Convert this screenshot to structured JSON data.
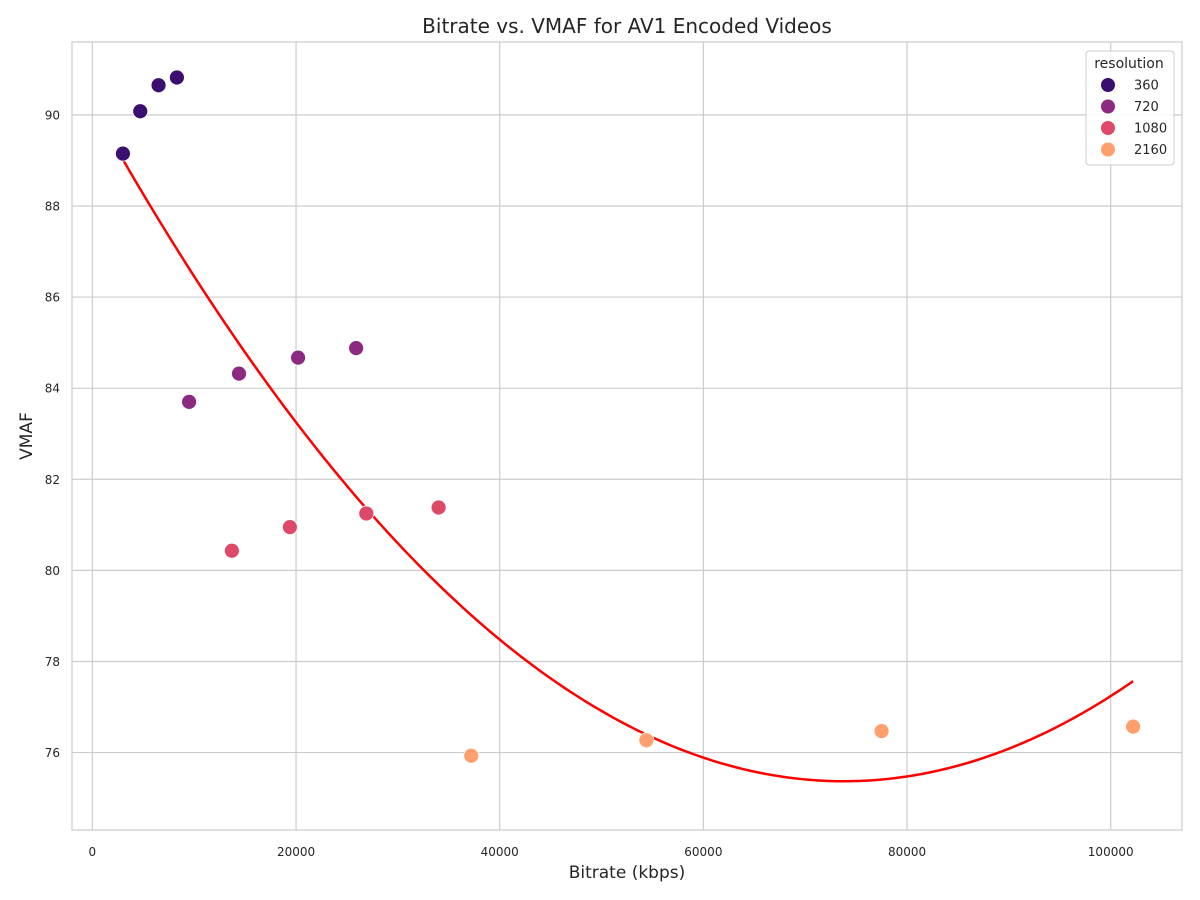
{
  "chart_data": {
    "type": "scatter",
    "title": "Bitrate vs. VMAF for AV1 Encoded Videos",
    "xlabel": "Bitrate (kbps)",
    "ylabel": "VMAF",
    "xlim": [
      -2000,
      107000
    ],
    "ylim": [
      74.3,
      91.6
    ],
    "xticks": [
      0,
      20000,
      40000,
      60000,
      80000,
      100000
    ],
    "yticks": [
      76,
      78,
      80,
      82,
      84,
      86,
      88,
      90
    ],
    "grid": true,
    "legend": {
      "title": "resolution",
      "placement": "top-right"
    },
    "series": [
      {
        "name": "360",
        "color": "#3b0f70",
        "points": [
          [
            3000,
            89.15
          ],
          [
            4700,
            90.08
          ],
          [
            6500,
            90.65
          ],
          [
            8300,
            90.82
          ]
        ]
      },
      {
        "name": "720",
        "color": "#8c2981",
        "points": [
          [
            9500,
            83.7
          ],
          [
            14400,
            84.32
          ],
          [
            20200,
            84.67
          ],
          [
            25900,
            84.88
          ]
        ]
      },
      {
        "name": "1080",
        "color": "#de4968",
        "points": [
          [
            13700,
            80.43
          ],
          [
            19400,
            80.95
          ],
          [
            26900,
            81.25
          ],
          [
            34000,
            81.38
          ]
        ]
      },
      {
        "name": "2160",
        "color": "#fe9f6d",
        "points": [
          [
            37200,
            75.93
          ],
          [
            54400,
            76.27
          ],
          [
            77500,
            76.47
          ],
          [
            102200,
            76.57
          ]
        ]
      }
    ],
    "trendline": {
      "type": "quadratic",
      "color": "#ff0000",
      "x_range": [
        3000,
        102200
      ],
      "coefficients": [
        2.723e-09,
        -0.0004019,
        90.2
      ]
    }
  }
}
